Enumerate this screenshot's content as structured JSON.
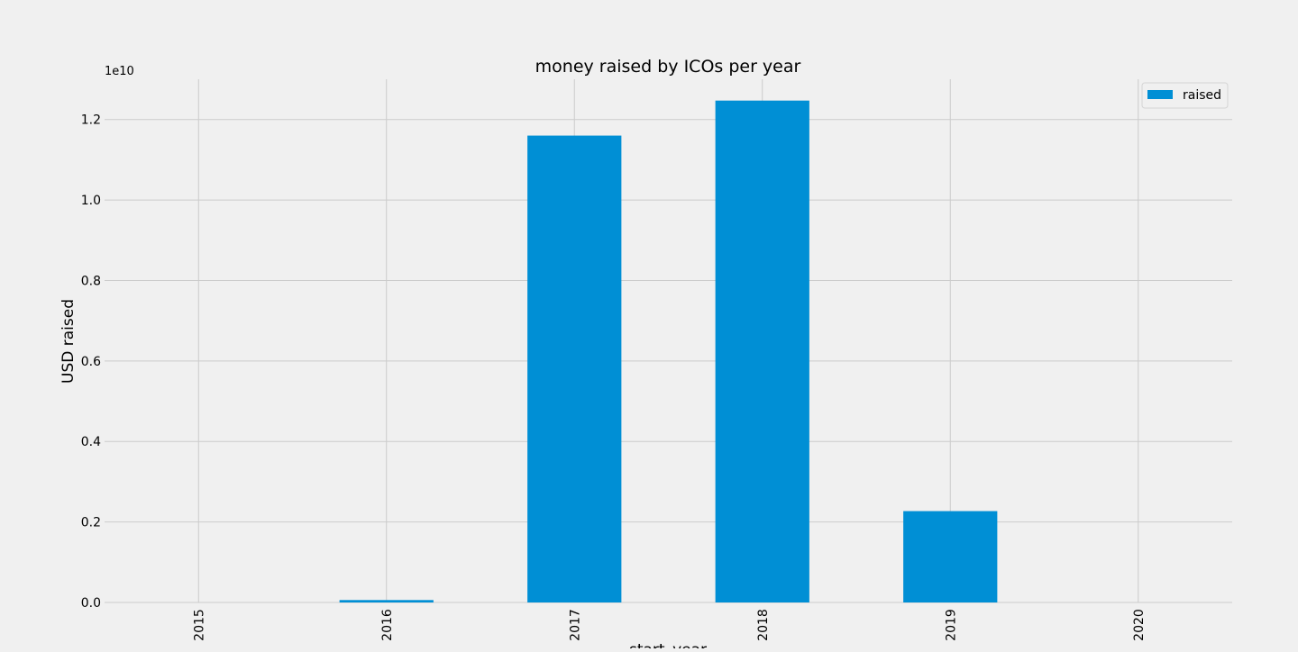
{
  "chart_data": {
    "type": "bar",
    "title": "money raised by ICOs per year",
    "xlabel": "start_year",
    "ylabel": "USD raised",
    "offset_label": "1e10",
    "categories": [
      "2015",
      "2016",
      "2017",
      "2018",
      "2019",
      "2020"
    ],
    "series": [
      {
        "name": "raised",
        "values": [
          0,
          60000000,
          11600000000,
          12470000000,
          2270000000,
          0
        ]
      }
    ],
    "ylim": [
      0,
      13000000000
    ],
    "yticks": [
      0,
      2000000000,
      4000000000,
      6000000000,
      8000000000,
      10000000000,
      12000000000
    ],
    "ytick_labels": [
      "0.0",
      "0.2",
      "0.4",
      "0.6",
      "0.8",
      "1.0",
      "1.2"
    ],
    "grid": true,
    "legend_position": "top-right",
    "colors": {
      "bar": "#008fd5",
      "background": "#f0f0f0",
      "grid": "#cbcbcb"
    }
  }
}
